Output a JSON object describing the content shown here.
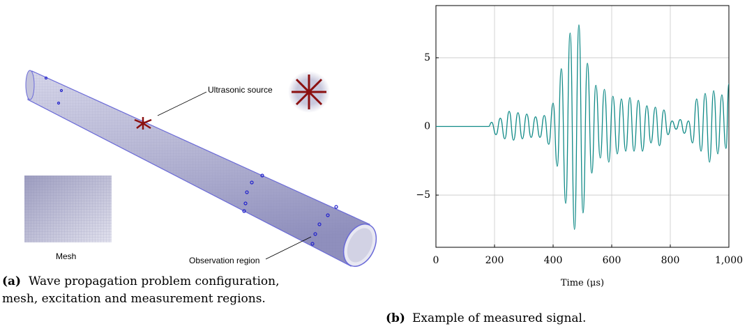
{
  "panel_a": {
    "labels": {
      "source": "Ultrasonic source",
      "mesh": "Mesh",
      "observation": "Observation region"
    },
    "caption": {
      "tag": "(a)",
      "lines": [
        "Wave propagation problem configuration,",
        "mesh, excitation and measurement regions."
      ]
    }
  },
  "chart_data": {
    "type": "line",
    "xlabel": "Time (μs)",
    "caption": {
      "tag": "(b)",
      "text": "Example of measured signal."
    },
    "x": [
      0,
      180,
      190,
      205,
      220,
      235,
      250,
      265,
      280,
      295,
      310,
      325,
      340,
      355,
      370,
      385,
      400,
      414,
      428,
      443,
      458,
      473,
      488,
      502,
      517,
      532,
      546,
      561,
      575,
      590,
      604,
      619,
      633,
      648,
      662,
      676,
      691,
      705,
      720,
      734,
      749,
      763,
      778,
      792,
      806,
      820,
      834,
      848,
      862,
      876,
      890,
      905,
      919,
      934,
      948,
      962,
      976,
      990,
      1000
    ],
    "series": [
      {
        "color": "#108a87",
        "values": [
          0,
          0,
          0.3,
          -0.6,
          0.6,
          -0.9,
          1.1,
          -1.0,
          1.0,
          -0.9,
          0.9,
          -0.8,
          0.7,
          -0.8,
          0.8,
          -1.3,
          1.7,
          -2.9,
          4.2,
          -5.6,
          6.8,
          -7.5,
          7.4,
          -6.3,
          4.6,
          -3.4,
          3.0,
          -2.3,
          2.7,
          -2.6,
          2.2,
          -2.0,
          2.0,
          -1.8,
          2.1,
          -1.8,
          1.9,
          -1.8,
          1.5,
          -1.2,
          1.4,
          -1.4,
          1.2,
          -0.6,
          0.4,
          -0.2,
          0.5,
          -0.5,
          0.4,
          -1.2,
          2.0,
          -1.8,
          2.4,
          -2.6,
          2.6,
          -2.0,
          2.3,
          -1.6,
          3.1
        ]
      }
    ],
    "xlim": [
      0,
      1000
    ],
    "xticks": [
      0,
      200,
      400,
      600,
      800,
      {
        "value": 1000,
        "label": "1,000"
      }
    ],
    "ylim": [
      -8.8,
      8.8
    ],
    "yticks": [
      -5,
      0,
      5
    ],
    "grid": true
  }
}
